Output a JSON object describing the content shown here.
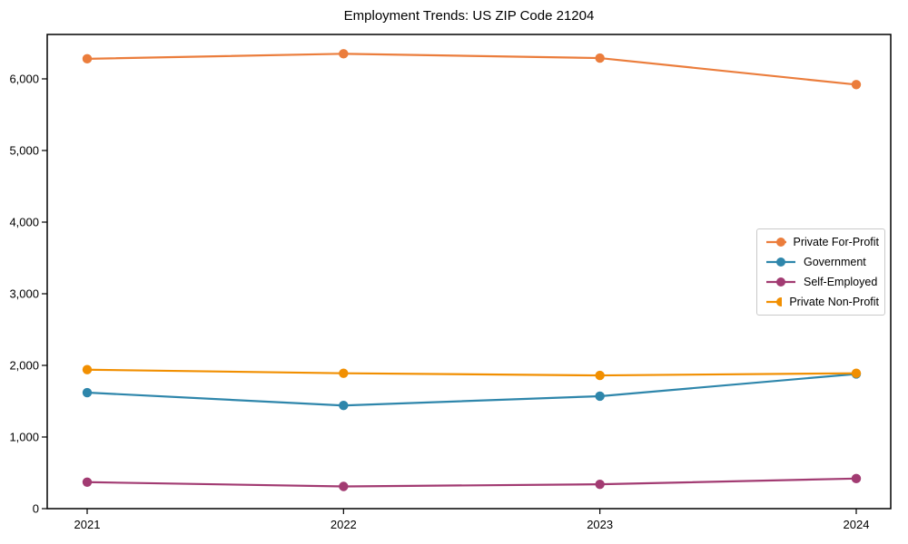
{
  "page": {
    "title": "Employment Trends: US ZIP Code 21204"
  },
  "chart_data": {
    "type": "line",
    "title": "Employment Trends: US ZIP Code 21204",
    "xlabel": "",
    "ylabel": "",
    "x": [
      2021,
      2022,
      2023,
      2024
    ],
    "x_tick_labels": [
      "2021",
      "2022",
      "2023",
      "2024"
    ],
    "y_ticks": [
      0,
      1000,
      2000,
      3000,
      4000,
      5000,
      6000
    ],
    "y_tick_labels": [
      "0",
      "1,000",
      "2,000",
      "3,000",
      "4,000",
      "5,000",
      "6,000"
    ],
    "ylim": [
      0,
      6620
    ],
    "grid": false,
    "legend_position": "center-right",
    "axis_color": "#000000",
    "background_color": "#ffffff",
    "series": [
      {
        "name": "Private For-Profit",
        "color": "#EB7D3C",
        "values": [
          6280,
          6350,
          6290,
          5920
        ]
      },
      {
        "name": "Government",
        "color": "#2E86AB",
        "values": [
          1620,
          1440,
          1570,
          1880
        ]
      },
      {
        "name": "Self-Employed",
        "color": "#A23B72",
        "values": [
          370,
          310,
          340,
          420
        ]
      },
      {
        "name": "Private Non-Profit",
        "color": "#F18F01",
        "values": [
          1940,
          1890,
          1860,
          1890
        ]
      }
    ]
  }
}
